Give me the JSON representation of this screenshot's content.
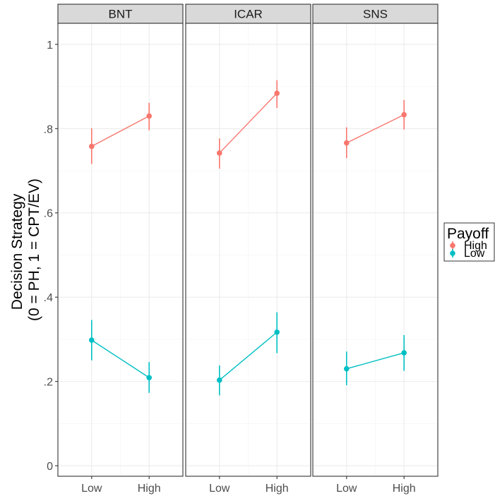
{
  "chart_data": {
    "type": "line",
    "ylabel_lines": [
      "Decision Strategy",
      "(0 = PH, 1 = CPT/EV)"
    ],
    "xlabel": "",
    "categories": [
      "Low",
      "High"
    ],
    "ylim": [
      -0.025,
      1.05
    ],
    "y_ticks": [
      0,
      0.2,
      0.4,
      0.6,
      0.8,
      1
    ],
    "y_tick_labels": [
      "0",
      ".2",
      ".4",
      ".6",
      ".8",
      "1"
    ],
    "grid": true,
    "legend": {
      "title": "Payoff",
      "position": "right",
      "entries": [
        "High",
        "Low"
      ]
    },
    "series_colors": {
      "High": "#F8766D",
      "Low": "#00BFC4"
    },
    "panels": [
      {
        "facet": "BNT",
        "series": [
          {
            "name": "High",
            "values": [
              0.758,
              0.83
            ],
            "lower": [
              0.716,
              0.796
            ],
            "upper": [
              0.801,
              0.861
            ]
          },
          {
            "name": "Low",
            "values": [
              0.298,
              0.209
            ],
            "lower": [
              0.25,
              0.173
            ],
            "upper": [
              0.346,
              0.246
            ]
          }
        ]
      },
      {
        "facet": "ICAR",
        "series": [
          {
            "name": "High",
            "values": [
              0.742,
              0.884
            ],
            "lower": [
              0.705,
              0.849
            ],
            "upper": [
              0.777,
              0.915
            ]
          },
          {
            "name": "Low",
            "values": [
              0.203,
              0.317
            ],
            "lower": [
              0.167,
              0.267
            ],
            "upper": [
              0.238,
              0.364
            ]
          }
        ]
      },
      {
        "facet": "SNS",
        "series": [
          {
            "name": "High",
            "values": [
              0.766,
              0.833
            ],
            "lower": [
              0.73,
              0.798
            ],
            "upper": [
              0.803,
              0.868
            ]
          },
          {
            "name": "Low",
            "values": [
              0.23,
              0.268
            ],
            "lower": [
              0.191,
              0.225
            ],
            "upper": [
              0.271,
              0.31
            ]
          }
        ]
      }
    ]
  }
}
